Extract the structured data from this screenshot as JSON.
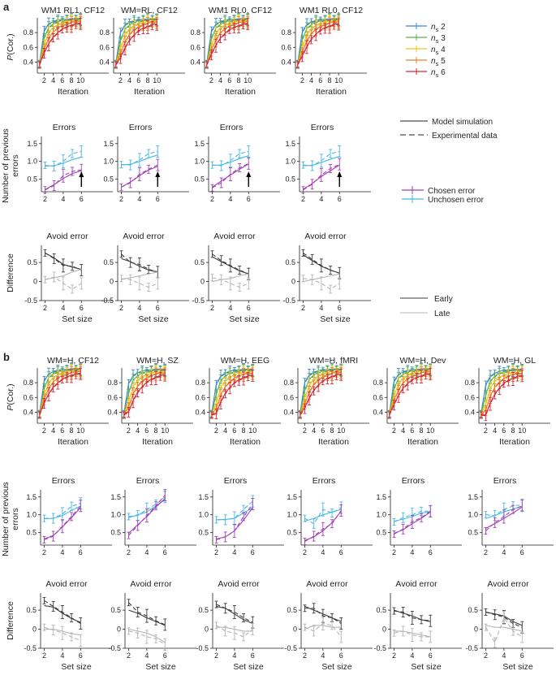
{
  "figure": {
    "width": 685,
    "height": 858
  },
  "colors": {
    "axis": "#231f20",
    "ns": [
      "#3a87c8",
      "#59b149",
      "#f0c318",
      "#ee7d23",
      "#d6283a"
    ],
    "chosen": "#a33fb6",
    "unchosen": "#47b8e5",
    "early": "#3b3b3b",
    "late": "#b5b5b5"
  },
  "labels": {
    "panel_a": "a",
    "panel_b": "b",
    "ylabel_pcor": "P(Cor.)",
    "ylabel_pcor_p": "P",
    "ylabel_pcor_rest": "(Cor.)",
    "ylabel_errors": "Number of previous errors",
    "ylabel_errors_l1": "Number of previous",
    "ylabel_errors_l2": "errors",
    "ylabel_diff": "Difference",
    "xlabel_iter": "Iteration",
    "xlabel_set": "Set size",
    "title_errors": "Errors",
    "title_avoid": "Avoid error"
  },
  "legends": {
    "ns": [
      {
        "prefix": "n",
        "sub": "s",
        "value": "2"
      },
      {
        "prefix": "n",
        "sub": "s",
        "value": "3"
      },
      {
        "prefix": "n",
        "sub": "s",
        "value": "4"
      },
      {
        "prefix": "n",
        "sub": "s",
        "value": "5"
      },
      {
        "prefix": "n",
        "sub": "s",
        "value": "6"
      }
    ],
    "style": {
      "model": "Model simulation",
      "data": "Experimental data"
    },
    "errors": {
      "chosen": "Chosen error",
      "unchosen": "Unchosen error"
    },
    "timing": {
      "early": "Early",
      "late": "Late"
    }
  },
  "chart_data": {
    "panel_a_titles": [
      "WM1 RL1, CF12",
      "WM=RL, CF12",
      "WM1 RL0, CF12",
      "WM1 RL0, CF12"
    ],
    "panel_b_titles": [
      "WM=H, CF12",
      "WM=H, SZ",
      "WM=H, EEG",
      "WM=H, fMRI",
      "WM=H, Dev",
      "WM=H, GL"
    ],
    "learning_curves": {
      "type": "line",
      "x": [
        1,
        2,
        3,
        4,
        5,
        6,
        7,
        8,
        9,
        10
      ],
      "xticks": [
        2,
        4,
        6,
        8,
        10
      ],
      "xlim": [
        0.5,
        10.5
      ],
      "ylim": [
        0.25,
        1.0
      ],
      "yticks": [
        0.4,
        0.6,
        0.8
      ],
      "series": [
        {
          "name": "ns 2",
          "values": [
            0.38,
            0.82,
            0.91,
            0.94,
            0.96,
            0.97,
            0.97,
            0.98,
            0.98,
            0.98
          ]
        },
        {
          "name": "ns 3",
          "values": [
            0.37,
            0.72,
            0.86,
            0.91,
            0.94,
            0.95,
            0.96,
            0.97,
            0.97,
            0.97
          ]
        },
        {
          "name": "ns 4",
          "values": [
            0.36,
            0.63,
            0.79,
            0.86,
            0.9,
            0.92,
            0.94,
            0.95,
            0.95,
            0.96
          ]
        },
        {
          "name": "ns 5",
          "values": [
            0.36,
            0.57,
            0.71,
            0.8,
            0.85,
            0.89,
            0.91,
            0.93,
            0.94,
            0.94
          ]
        },
        {
          "name": "ns 6",
          "values": [
            0.36,
            0.52,
            0.64,
            0.73,
            0.79,
            0.84,
            0.87,
            0.89,
            0.91,
            0.92
          ]
        }
      ]
    },
    "errors_panels": {
      "type": "line",
      "x": [
        2,
        3,
        4,
        5,
        6
      ],
      "xticks": [
        2,
        4,
        6
      ],
      "xlim": [
        1.6,
        6.6
      ],
      "ylim": [
        0.15,
        1.7
      ],
      "yticks": [
        0.5,
        1,
        1.5
      ],
      "ytick_labels": [
        "0.5",
        "1.0",
        "1.5"
      ],
      "a": [
        {
          "unchosen_model": [
            0.87,
            0.88,
            0.95,
            1.05,
            1.12
          ],
          "unchosen_data": [
            0.89,
            0.87,
            1.0,
            1.22,
            1.28
          ],
          "chosen_model": [
            0.21,
            0.35,
            0.52,
            0.66,
            0.74
          ],
          "chosen_data": [
            0.2,
            0.32,
            0.6,
            0.72,
            0.76
          ]
        },
        {
          "unchosen_model": [
            0.9,
            0.92,
            1.0,
            1.1,
            1.18
          ],
          "unchosen_data": [
            0.91,
            0.9,
            1.04,
            1.22,
            1.28
          ],
          "chosen_model": [
            0.28,
            0.42,
            0.6,
            0.76,
            0.86
          ],
          "chosen_data": [
            0.28,
            0.4,
            0.64,
            0.78,
            0.9
          ]
        },
        {
          "unchosen_model": [
            0.89,
            0.9,
            0.98,
            1.08,
            1.16
          ],
          "unchosen_data": [
            0.9,
            0.88,
            1.02,
            1.22,
            1.28
          ],
          "chosen_model": [
            0.28,
            0.45,
            0.62,
            0.78,
            0.93
          ],
          "chosen_data": [
            0.26,
            0.4,
            0.64,
            0.82,
            0.94
          ]
        },
        {
          "unchosen_model": [
            0.88,
            0.89,
            0.97,
            1.06,
            1.14
          ],
          "unchosen_data": [
            0.9,
            0.88,
            1.02,
            1.22,
            1.28
          ],
          "chosen_model": [
            0.22,
            0.38,
            0.58,
            0.74,
            0.9
          ],
          "chosen_data": [
            0.2,
            0.36,
            0.62,
            0.8,
            0.92
          ]
        }
      ],
      "b": [
        {
          "unchosen_model": [
            0.89,
            0.9,
            0.98,
            1.12,
            1.25
          ],
          "unchosen_data": [
            0.9,
            0.9,
            1.02,
            1.24,
            1.32
          ],
          "chosen_model": [
            0.32,
            0.42,
            0.66,
            0.92,
            1.2
          ],
          "chosen_data": [
            0.3,
            0.4,
            0.68,
            0.95,
            1.25
          ]
        },
        {
          "unchosen_model": [
            0.92,
            1.0,
            1.08,
            1.25,
            1.42
          ],
          "unchosen_data": [
            0.95,
            0.98,
            1.15,
            1.3,
            1.5
          ],
          "chosen_model": [
            0.48,
            0.72,
            0.95,
            1.22,
            1.45
          ],
          "chosen_data": [
            0.42,
            0.7,
            0.98,
            1.25,
            1.55
          ]
        },
        {
          "unchosen_model": [
            0.86,
            0.87,
            0.9,
            1.05,
            1.2
          ],
          "unchosen_data": [
            0.86,
            0.86,
            0.9,
            1.15,
            1.38
          ],
          "chosen_model": [
            0.32,
            0.38,
            0.55,
            0.85,
            1.2
          ],
          "chosen_data": [
            0.3,
            0.38,
            0.55,
            0.95,
            1.3
          ]
        },
        {
          "unchosen_model": [
            0.82,
            0.9,
            1.0,
            1.08,
            1.15
          ],
          "unchosen_data": [
            0.9,
            0.75,
            1.15,
            1.05,
            1.2
          ],
          "chosen_model": [
            0.28,
            0.38,
            0.55,
            0.78,
            1.1
          ],
          "chosen_data": [
            0.25,
            0.4,
            0.6,
            0.75,
            1.12
          ]
        },
        {
          "unchosen_model": [
            0.82,
            0.88,
            0.95,
            1.05,
            1.08
          ],
          "unchosen_data": [
            0.8,
            0.92,
            1.0,
            1.1,
            1.1
          ],
          "chosen_model": [
            0.48,
            0.58,
            0.75,
            0.9,
            1.08
          ],
          "chosen_data": [
            0.46,
            0.6,
            0.8,
            0.92,
            1.1
          ]
        },
        {
          "unchosen_model": [
            0.9,
            0.98,
            1.08,
            1.16,
            1.24
          ],
          "unchosen_data": [
            1.0,
            0.98,
            1.15,
            1.25,
            1.28
          ],
          "chosen_model": [
            0.62,
            0.75,
            0.9,
            1.05,
            1.22
          ],
          "chosen_data": [
            0.55,
            0.78,
            0.95,
            1.15,
            1.25
          ]
        }
      ]
    },
    "avoid_panels": {
      "type": "line",
      "x": [
        2,
        3,
        4,
        5,
        6
      ],
      "xticks": [
        2,
        4,
        6
      ],
      "xlim": [
        1.6,
        6.6
      ],
      "ylim": [
        -0.5,
        0.95
      ],
      "yticks": [
        -0.5,
        0,
        0.5
      ],
      "ytick_labels": [
        "-0.5",
        "0",
        "0.5"
      ],
      "a": [
        {
          "early_model": [
            0.75,
            0.62,
            0.45,
            0.38,
            0.32
          ],
          "early_data": [
            0.75,
            0.6,
            0.42,
            0.4,
            0.3
          ],
          "late_model": [
            0.05,
            0.1,
            0.15,
            0.25,
            0.32
          ],
          "late_data": [
            0.05,
            0.12,
            -0.05,
            -0.2,
            -0.05
          ]
        },
        {
          "early_model": [
            0.6,
            0.52,
            0.4,
            0.3,
            0.25
          ],
          "early_data": [
            0.72,
            0.5,
            0.45,
            0.32,
            0.25
          ],
          "late_model": [
            0.05,
            0.1,
            0.15,
            0.2,
            0.25
          ],
          "late_data": [
            0.08,
            0.05,
            -0.05,
            -0.15,
            -0.05
          ]
        },
        {
          "early_model": [
            0.65,
            0.52,
            0.4,
            0.28,
            0.2
          ],
          "early_data": [
            0.72,
            0.55,
            0.42,
            0.3,
            0.2
          ],
          "late_model": [
            0.0,
            0.05,
            0.08,
            0.15,
            0.2
          ],
          "late_data": [
            0.1,
            0.05,
            -0.05,
            -0.15,
            -0.05
          ]
        },
        {
          "early_model": [
            0.7,
            0.55,
            0.4,
            0.3,
            0.22
          ],
          "early_data": [
            0.75,
            0.58,
            0.42,
            0.3,
            0.22
          ],
          "late_model": [
            0.0,
            0.05,
            0.1,
            0.15,
            0.2
          ],
          "late_data": [
            0.08,
            0.05,
            -0.05,
            -0.2,
            -0.05
          ]
        }
      ],
      "b": [
        {
          "early_model": [
            0.62,
            0.58,
            0.42,
            0.28,
            0.18
          ],
          "early_data": [
            0.75,
            0.6,
            0.45,
            0.3,
            0.15
          ],
          "late_model": [
            0.0,
            0.0,
            -0.05,
            -0.12,
            -0.15
          ],
          "late_data": [
            0.05,
            -0.02,
            -0.1,
            -0.2,
            -0.3
          ]
        },
        {
          "early_model": [
            0.5,
            0.42,
            0.3,
            0.2,
            0.1
          ],
          "early_data": [
            0.7,
            0.45,
            0.35,
            0.22,
            0.12
          ],
          "late_model": [
            0.0,
            -0.05,
            -0.1,
            -0.2,
            -0.35
          ],
          "late_data": [
            -0.05,
            -0.1,
            -0.2,
            -0.25,
            -0.4
          ]
        },
        {
          "early_model": [
            0.6,
            0.55,
            0.4,
            0.25,
            0.15
          ],
          "early_data": [
            0.65,
            0.55,
            0.45,
            0.3,
            0.18
          ],
          "late_model": [
            0.05,
            0.05,
            0.0,
            -0.05,
            -0.05
          ],
          "late_data": [
            0.1,
            -0.05,
            -0.1,
            -0.2,
            0.0
          ]
        },
        {
          "early_model": [
            0.6,
            0.5,
            0.4,
            0.3,
            0.2
          ],
          "early_data": [
            0.55,
            0.55,
            0.35,
            0.3,
            0.15
          ],
          "late_model": [
            0.0,
            0.1,
            0.1,
            0.05,
            0.05
          ],
          "late_data": [
            0.05,
            -0.05,
            0.15,
            0.1,
            -0.2
          ]
        },
        {
          "early_model": [
            0.5,
            0.42,
            0.35,
            0.25,
            0.2
          ],
          "early_data": [
            0.48,
            0.45,
            0.3,
            0.25,
            0.22
          ],
          "late_model": [
            -0.05,
            -0.05,
            -0.1,
            -0.15,
            -0.2
          ],
          "late_data": [
            -0.1,
            -0.05,
            -0.15,
            -0.2,
            -0.2
          ]
        },
        {
          "early_model": [
            0.45,
            0.4,
            0.35,
            0.2,
            0.1
          ],
          "early_data": [
            0.45,
            0.38,
            0.32,
            0.15,
            0.05
          ],
          "late_model": [
            0.1,
            0.05,
            0.05,
            0.0,
            -0.05
          ],
          "late_data": [
            0.05,
            -0.35,
            0.3,
            -0.05,
            -0.2
          ]
        }
      ]
    }
  }
}
